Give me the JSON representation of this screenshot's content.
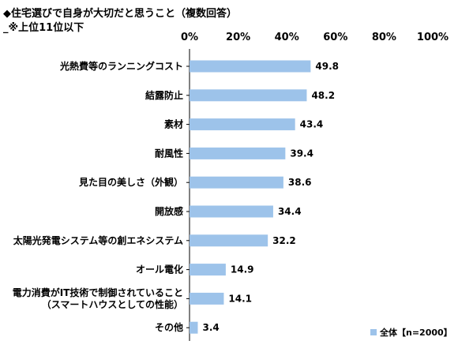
{
  "header": {
    "title": "◆住宅選びで自身が大切だと思うこと（複数回答）",
    "subtitle": "_※上位11位以下"
  },
  "chart_data": {
    "type": "bar",
    "orientation": "horizontal",
    "title": "◆住宅選びで自身が大切だと思うこと（複数回答）",
    "xlim": [
      0,
      100
    ],
    "x_ticks": [
      "0%",
      "20%",
      "40%",
      "60%",
      "80%",
      "100%"
    ],
    "grid": false,
    "legend_position": "bottom-right",
    "bar_color": "#9dc3ea",
    "categories": [
      [
        "光熱費等のランニングコスト"
      ],
      [
        "結露防止"
      ],
      [
        "素材"
      ],
      [
        "耐風性"
      ],
      [
        "見た目の美しさ（外観）"
      ],
      [
        "開放感"
      ],
      [
        "太陽光発電システム等の創エネシステム"
      ],
      [
        "オール電化"
      ],
      [
        "電力消費がIT技術で制御されていること",
        "（スマートハウスとしての性能）"
      ],
      [
        "その他"
      ]
    ],
    "series": [
      {
        "name": "全体【n=2000】",
        "values": [
          49.8,
          48.2,
          43.4,
          39.4,
          38.6,
          34.4,
          32.2,
          14.9,
          14.1,
          3.4
        ],
        "labels": [
          "49.8",
          "48.2",
          "43.4",
          "39.4",
          "38.6",
          "34.4",
          "32.2",
          "14.9",
          "14.1",
          "3.4"
        ]
      }
    ]
  }
}
